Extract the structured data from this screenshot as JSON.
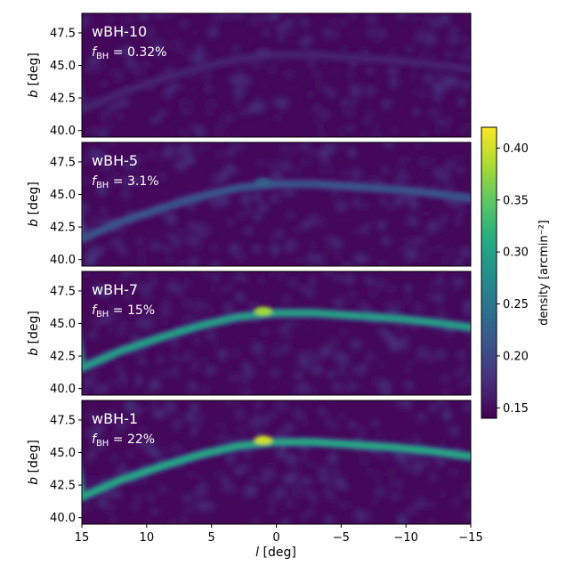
{
  "chart_data": {
    "type": "heatmap",
    "xlabel": "l [deg]",
    "xlim": [
      15,
      -15
    ],
    "xticks": [
      15,
      10,
      5,
      0,
      -5,
      -10,
      -15
    ],
    "xtick_labels": [
      "15",
      "10",
      "5",
      "0",
      "−5",
      "−10",
      "−15"
    ],
    "ylabel": "b [deg]",
    "ylim": [
      39.5,
      49.0
    ],
    "yticks": [
      40.0,
      42.5,
      45.0,
      47.5
    ],
    "ytick_labels": [
      "40.0",
      "42.5",
      "45.0",
      "47.5"
    ],
    "colorbar": {
      "label": "density [arcmin⁻²]",
      "range": [
        0.14,
        0.42
      ],
      "ticks": [
        0.15,
        0.2,
        0.25,
        0.3,
        0.35,
        0.4
      ],
      "tick_labels": [
        "0.15",
        "0.20",
        "0.25",
        "0.30",
        "0.35",
        "0.40"
      ],
      "colormap": [
        "#440154",
        "#472d7b",
        "#3b528b",
        "#2c728e",
        "#21918c",
        "#28ae80",
        "#5ec962",
        "#addc30",
        "#fde725"
      ]
    },
    "stream_track": {
      "l": [
        15,
        12,
        9,
        6,
        3,
        0,
        -3,
        -6,
        -9,
        -12,
        -15
      ],
      "b": [
        41.6,
        42.9,
        43.9,
        44.8,
        45.5,
        45.8,
        45.8,
        45.6,
        45.4,
        45.1,
        44.7
      ]
    },
    "panels": [
      {
        "model": "wBH-10",
        "fbh_label": "0.32%",
        "stream_peak_density": 0.165,
        "cusp_density": 0.17
      },
      {
        "model": "wBH-5",
        "fbh_label": "3.1%",
        "stream_peak_density": 0.215,
        "cusp_density": 0.225
      },
      {
        "model": "wBH-7",
        "fbh_label": "15%",
        "stream_peak_density": 0.3,
        "cusp_density": 0.38
      },
      {
        "model": "wBH-1",
        "fbh_label": "22%",
        "stream_peak_density": 0.31,
        "cusp_density": 0.4
      }
    ],
    "fbh_prefix": "f",
    "fbh_subscript": "BH",
    "fbh_equals": " = "
  }
}
